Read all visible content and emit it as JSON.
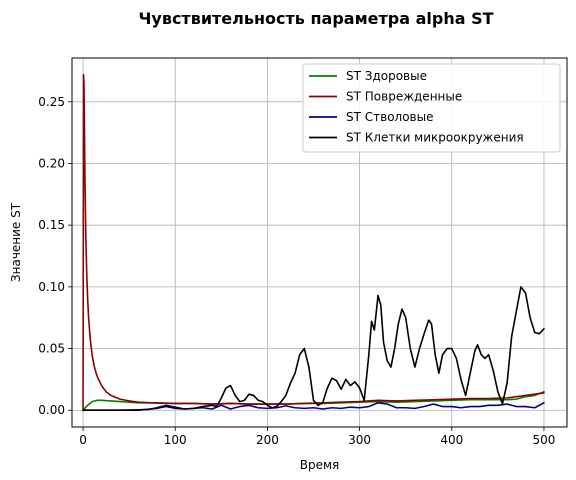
{
  "chart_data": {
    "type": "line",
    "title": "Чувствительность параметра alpha ST",
    "xlabel": "Время",
    "ylabel": "Значение ST",
    "xlim": [
      -12,
      525
    ],
    "ylim": [
      -0.0136,
      0.2855
    ],
    "xticks": [
      0,
      100,
      200,
      300,
      400,
      500
    ],
    "xtick_labels": [
      "0",
      "100",
      "200",
      "300",
      "400",
      "500"
    ],
    "yticks": [
      0.0,
      0.05,
      0.1,
      0.15,
      0.2,
      0.25
    ],
    "ytick_labels": [
      "0.00",
      "0.05",
      "0.10",
      "0.15",
      "0.20",
      "0.25"
    ],
    "grid": true,
    "legend_position": "top-right",
    "series": [
      {
        "name": "ST Здоровые",
        "color": "#008000",
        "x": [
          0,
          5,
          10,
          15,
          20,
          30,
          40,
          50,
          60,
          80,
          100,
          120,
          140,
          160,
          180,
          200,
          220,
          240,
          260,
          280,
          300,
          320,
          340,
          360,
          380,
          400,
          420,
          440,
          460,
          470,
          480,
          490,
          500
        ],
        "y": [
          0.0,
          0.004,
          0.007,
          0.008,
          0.008,
          0.0075,
          0.007,
          0.0065,
          0.006,
          0.006,
          0.0055,
          0.0055,
          0.005,
          0.0055,
          0.005,
          0.005,
          0.005,
          0.0055,
          0.0055,
          0.006,
          0.0065,
          0.007,
          0.0065,
          0.007,
          0.0075,
          0.008,
          0.0085,
          0.0085,
          0.0085,
          0.009,
          0.011,
          0.012,
          0.015
        ]
      },
      {
        "name": "ST Поврежденные",
        "color": "#8b0000",
        "x": [
          0,
          0.5,
          1,
          1.5,
          2,
          3,
          4,
          5,
          6,
          8,
          10,
          12,
          15,
          20,
          25,
          30,
          40,
          50,
          60,
          80,
          100,
          120,
          140,
          160,
          180,
          200,
          220,
          240,
          260,
          280,
          300,
          320,
          340,
          360,
          380,
          400,
          420,
          440,
          460,
          480,
          500
        ],
        "y": [
          0.0,
          0.272,
          0.265,
          0.23,
          0.19,
          0.14,
          0.11,
          0.09,
          0.075,
          0.056,
          0.044,
          0.036,
          0.028,
          0.02,
          0.015,
          0.012,
          0.009,
          0.0075,
          0.0065,
          0.0058,
          0.0055,
          0.0055,
          0.005,
          0.0055,
          0.005,
          0.005,
          0.005,
          0.0055,
          0.006,
          0.0065,
          0.007,
          0.008,
          0.0075,
          0.008,
          0.0085,
          0.009,
          0.0095,
          0.0095,
          0.01,
          0.012,
          0.014
        ]
      },
      {
        "name": "ST Стволовые",
        "color": "#00008b",
        "x": [
          0,
          40,
          70,
          80,
          90,
          100,
          110,
          120,
          130,
          140,
          150,
          160,
          170,
          180,
          190,
          200,
          210,
          220,
          230,
          240,
          250,
          260,
          270,
          280,
          290,
          300,
          310,
          320,
          330,
          340,
          350,
          360,
          370,
          380,
          390,
          400,
          410,
          420,
          430,
          440,
          450,
          460,
          470,
          480,
          490,
          500
        ],
        "y": [
          0.0,
          0.0,
          0.0005,
          0.002,
          0.004,
          0.0025,
          0.001,
          0.0015,
          0.002,
          0.001,
          0.004,
          0.001,
          0.003,
          0.004,
          0.002,
          0.0015,
          0.002,
          0.0035,
          0.002,
          0.0015,
          0.002,
          0.001,
          0.002,
          0.0015,
          0.0025,
          0.002,
          0.003,
          0.006,
          0.005,
          0.002,
          0.002,
          0.0015,
          0.003,
          0.005,
          0.003,
          0.003,
          0.002,
          0.003,
          0.003,
          0.004,
          0.004,
          0.005,
          0.003,
          0.003,
          0.002,
          0.006
        ]
      },
      {
        "name": "ST Клетки микроокружения",
        "color": "#000000",
        "x": [
          0,
          60,
          80,
          90,
          100,
          110,
          120,
          130,
          140,
          145,
          150,
          155,
          160,
          165,
          170,
          175,
          180,
          185,
          190,
          195,
          200,
          205,
          210,
          215,
          220,
          225,
          230,
          235,
          240,
          245,
          250,
          255,
          260,
          265,
          270,
          275,
          280,
          285,
          290,
          295,
          300,
          305,
          310,
          313,
          316,
          320,
          323,
          326,
          330,
          334,
          338,
          342,
          346,
          350,
          355,
          360,
          365,
          370,
          375,
          378,
          382,
          386,
          390,
          395,
          400,
          405,
          410,
          415,
          420,
          425,
          428,
          432,
          436,
          440,
          445,
          450,
          455,
          460,
          465,
          470,
          475,
          480,
          485,
          490,
          495,
          500
        ],
        "y": [
          0.0,
          0.0,
          0.0015,
          0.003,
          0.0015,
          0.001,
          0.0015,
          0.003,
          0.004,
          0.003,
          0.01,
          0.018,
          0.02,
          0.012,
          0.007,
          0.008,
          0.013,
          0.012,
          0.008,
          0.007,
          0.004,
          0.002,
          0.003,
          0.007,
          0.012,
          0.022,
          0.03,
          0.045,
          0.05,
          0.035,
          0.008,
          0.004,
          0.006,
          0.018,
          0.026,
          0.024,
          0.017,
          0.025,
          0.02,
          0.023,
          0.018,
          0.008,
          0.045,
          0.072,
          0.065,
          0.093,
          0.085,
          0.055,
          0.04,
          0.035,
          0.05,
          0.07,
          0.082,
          0.075,
          0.05,
          0.035,
          0.05,
          0.062,
          0.073,
          0.07,
          0.045,
          0.03,
          0.045,
          0.05,
          0.05,
          0.042,
          0.025,
          0.012,
          0.03,
          0.048,
          0.053,
          0.045,
          0.042,
          0.045,
          0.032,
          0.015,
          0.005,
          0.022,
          0.06,
          0.08,
          0.1,
          0.095,
          0.075,
          0.063,
          0.062,
          0.066
        ]
      }
    ]
  }
}
